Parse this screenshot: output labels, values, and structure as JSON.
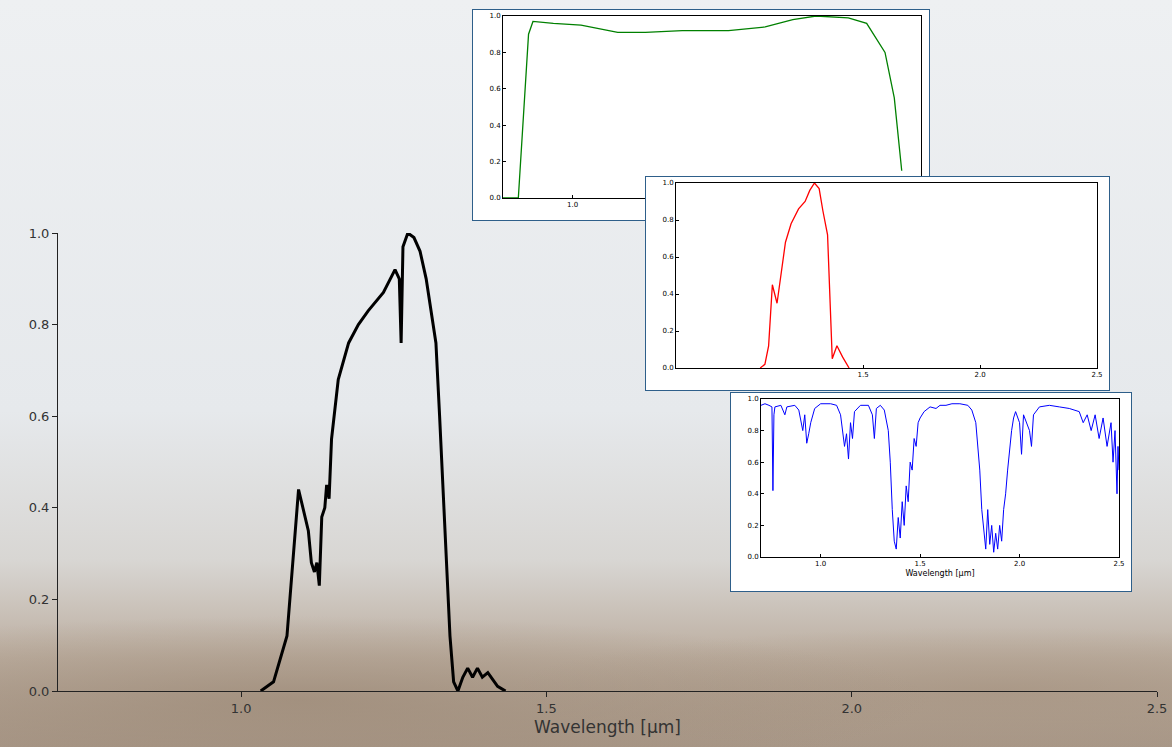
{
  "chart_data": [
    {
      "type": "line",
      "color": "#000000",
      "xlabel": "Wavelength [µm]",
      "grid": false,
      "x": [
        1.032,
        1.053,
        1.075,
        1.094,
        1.11,
        1.115,
        1.12,
        1.124,
        1.128,
        1.132,
        1.137,
        1.14,
        1.144,
        1.148,
        1.159,
        1.176,
        1.192,
        1.208,
        1.233,
        1.252,
        1.259,
        1.262,
        1.265,
        1.273,
        1.283,
        1.293,
        1.303,
        1.312,
        1.319,
        1.325,
        1.334,
        1.342,
        1.348,
        1.355,
        1.363,
        1.371,
        1.379,
        1.387,
        1.395,
        1.404,
        1.42,
        1.433
      ],
      "values": [
        0,
        0.02,
        0.12,
        0.44,
        0.35,
        0.28,
        0.26,
        0.28,
        0.23,
        0.38,
        0.4,
        0.45,
        0.42,
        0.55,
        0.68,
        0.76,
        0.8,
        0.83,
        0.87,
        0.92,
        0.9,
        0.76,
        0.97,
        1.0,
        0.99,
        0.96,
        0.9,
        0.82,
        0.76,
        0.6,
        0.35,
        0.12,
        0.02,
        0,
        0.03,
        0.05,
        0.03,
        0.05,
        0.03,
        0.04,
        0.01,
        0
      ],
      "xlim": [
        0.7,
        2.5
      ],
      "ylim": [
        0,
        1
      ],
      "xticks": [
        {
          "value": 1,
          "label": "1.0"
        },
        {
          "value": 1.5,
          "label": "1.5"
        },
        {
          "value": 2,
          "label": "2.0"
        },
        {
          "value": 2.5,
          "label": "2.5"
        }
      ],
      "yticks": [
        {
          "value": 0,
          "label": "0.0"
        },
        {
          "value": 0.2,
          "label": "0.2"
        },
        {
          "value": 0.4,
          "label": "0.4"
        },
        {
          "value": 0.6,
          "label": "0.6"
        },
        {
          "value": 0.8,
          "label": "0.8"
        },
        {
          "value": 1,
          "label": "1.0"
        }
      ]
    },
    {
      "type": "line",
      "color": "#008000",
      "grid": false,
      "x": [
        0.7,
        0.766,
        0.81,
        0.829,
        0.917,
        1.036,
        1.194,
        1.313,
        1.472,
        1.671,
        1.829,
        1.948,
        2.048,
        2.187,
        2.266,
        2.345,
        2.385,
        2.417
      ],
      "values": [
        0,
        0,
        0.9,
        0.97,
        0.96,
        0.95,
        0.91,
        0.91,
        0.92,
        0.92,
        0.94,
        0.98,
        1.0,
        0.99,
        0.96,
        0.8,
        0.55,
        0.15
      ],
      "xlim": [
        0.7,
        2.5
      ],
      "ylim": [
        0,
        1
      ],
      "xticks": [
        {
          "value": 1,
          "label": "1.0"
        }
      ],
      "yticks": [
        {
          "value": 0,
          "label": "0.0"
        },
        {
          "value": 0.2,
          "label": "0.2"
        },
        {
          "value": 0.4,
          "label": "0.4"
        },
        {
          "value": 0.6,
          "label": "0.6"
        },
        {
          "value": 0.8,
          "label": "0.8"
        },
        {
          "value": 1,
          "label": "1.0"
        }
      ]
    },
    {
      "type": "line",
      "color": "#ff0000",
      "grid": false,
      "x": [
        1.06,
        1.08,
        1.096,
        1.112,
        1.132,
        1.152,
        1.168,
        1.192,
        1.224,
        1.252,
        1.272,
        1.292,
        1.312,
        1.328,
        1.348,
        1.368,
        1.388,
        1.412,
        1.44
      ],
      "values": [
        0,
        0.02,
        0.12,
        0.45,
        0.35,
        0.55,
        0.68,
        0.78,
        0.86,
        0.9,
        0.96,
        1.0,
        0.97,
        0.85,
        0.72,
        0.05,
        0.12,
        0.06,
        0
      ],
      "xlim": [
        0.7,
        2.5
      ],
      "ylim": [
        0,
        1
      ],
      "xticks": [
        {
          "value": 1.5,
          "label": "1.5"
        },
        {
          "value": 2,
          "label": "2.0"
        },
        {
          "value": 2.5,
          "label": "2.5"
        }
      ],
      "yticks": [
        {
          "value": 0,
          "label": "0.0"
        },
        {
          "value": 0.2,
          "label": "0.2"
        },
        {
          "value": 0.4,
          "label": "0.4"
        },
        {
          "value": 0.6,
          "label": "0.6"
        },
        {
          "value": 0.8,
          "label": "0.8"
        },
        {
          "value": 1,
          "label": "1.0"
        }
      ]
    },
    {
      "type": "line",
      "color": "#0000ff",
      "xlabel": "Wavelength [µm]",
      "grid": false,
      "x": [
        0.7,
        0.72,
        0.74,
        0.755,
        0.76,
        0.765,
        0.77,
        0.8,
        0.81,
        0.82,
        0.83,
        0.87,
        0.89,
        0.9,
        0.91,
        0.92,
        0.93,
        0.94,
        0.95,
        0.97,
        1.0,
        1.05,
        1.08,
        1.1,
        1.11,
        1.12,
        1.13,
        1.14,
        1.15,
        1.16,
        1.17,
        1.2,
        1.24,
        1.26,
        1.27,
        1.28,
        1.3,
        1.32,
        1.34,
        1.35,
        1.36,
        1.37,
        1.38,
        1.39,
        1.4,
        1.41,
        1.42,
        1.43,
        1.44,
        1.45,
        1.46,
        1.47,
        1.48,
        1.49,
        1.5,
        1.52,
        1.55,
        1.58,
        1.6,
        1.63,
        1.66,
        1.7,
        1.74,
        1.76,
        1.78,
        1.79,
        1.8,
        1.81,
        1.82,
        1.83,
        1.84,
        1.85,
        1.86,
        1.87,
        1.88,
        1.89,
        1.9,
        1.91,
        1.92,
        1.93,
        1.94,
        1.95,
        1.96,
        1.97,
        1.98,
        2.0,
        2.01,
        2.02,
        2.05,
        2.06,
        2.07,
        2.1,
        2.15,
        2.2,
        2.25,
        2.3,
        2.32,
        2.34,
        2.36,
        2.38,
        2.4,
        2.42,
        2.44,
        2.46,
        2.47,
        2.48,
        2.49,
        2.495,
        2.5
      ],
      "values": [
        0.96,
        0.97,
        0.96,
        0.95,
        0.42,
        0.9,
        0.95,
        0.96,
        0.93,
        0.9,
        0.95,
        0.96,
        0.93,
        0.85,
        0.8,
        0.9,
        0.72,
        0.78,
        0.85,
        0.94,
        0.97,
        0.97,
        0.96,
        0.9,
        0.8,
        0.7,
        0.78,
        0.62,
        0.85,
        0.75,
        0.92,
        0.96,
        0.96,
        0.9,
        0.75,
        0.94,
        0.96,
        0.93,
        0.8,
        0.6,
        0.3,
        0.1,
        0.05,
        0.25,
        0.12,
        0.35,
        0.2,
        0.45,
        0.35,
        0.6,
        0.55,
        0.75,
        0.7,
        0.85,
        0.88,
        0.92,
        0.95,
        0.94,
        0.96,
        0.96,
        0.97,
        0.97,
        0.96,
        0.93,
        0.85,
        0.7,
        0.55,
        0.3,
        0.15,
        0.05,
        0.3,
        0.08,
        0.2,
        0.03,
        0.15,
        0.05,
        0.2,
        0.1,
        0.3,
        0.4,
        0.55,
        0.7,
        0.8,
        0.88,
        0.92,
        0.85,
        0.65,
        0.9,
        0.8,
        0.7,
        0.9,
        0.95,
        0.96,
        0.95,
        0.94,
        0.92,
        0.85,
        0.9,
        0.8,
        0.9,
        0.75,
        0.88,
        0.7,
        0.85,
        0.6,
        0.8,
        0.4,
        0.7,
        0.55
      ],
      "xlim": [
        0.7,
        2.5
      ],
      "ylim": [
        0,
        1
      ],
      "xticks": [
        {
          "value": 1,
          "label": "1.0"
        },
        {
          "value": 1.5,
          "label": "1.5"
        },
        {
          "value": 2,
          "label": "2.0"
        },
        {
          "value": 2.5,
          "label": "2.5"
        }
      ],
      "yticks": [
        {
          "value": 0,
          "label": "0.0"
        },
        {
          "value": 0.2,
          "label": "0.2"
        },
        {
          "value": 0.4,
          "label": "0.4"
        },
        {
          "value": 0.6,
          "label": "0.6"
        },
        {
          "value": 0.8,
          "label": "0.8"
        },
        {
          "value": 1,
          "label": "1.0"
        }
      ]
    }
  ]
}
